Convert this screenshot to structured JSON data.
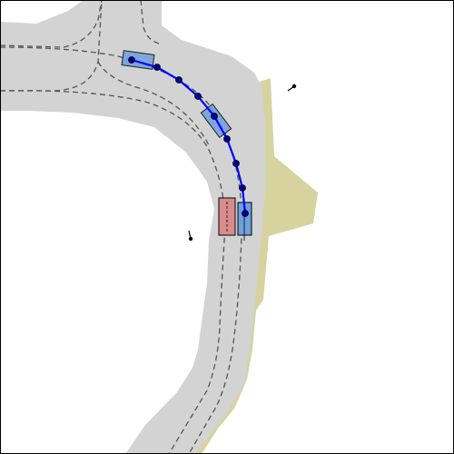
{
  "map": {
    "colors": {
      "background": "#ffffff",
      "road": "#d3d3d3",
      "lane_marking": "#555555",
      "sidewalk": "#d6d39f",
      "ego_vehicle_fill": "#6fa0dc",
      "other_vehicle_fill": "#d98c8c",
      "trajectory": "#0000ff",
      "waypoint": "#00008b",
      "outline": "#000000"
    },
    "trajectory": {
      "waypoint_count": 10
    },
    "icons": [
      "pedestrian-icon",
      "pedestrian-icon"
    ]
  }
}
